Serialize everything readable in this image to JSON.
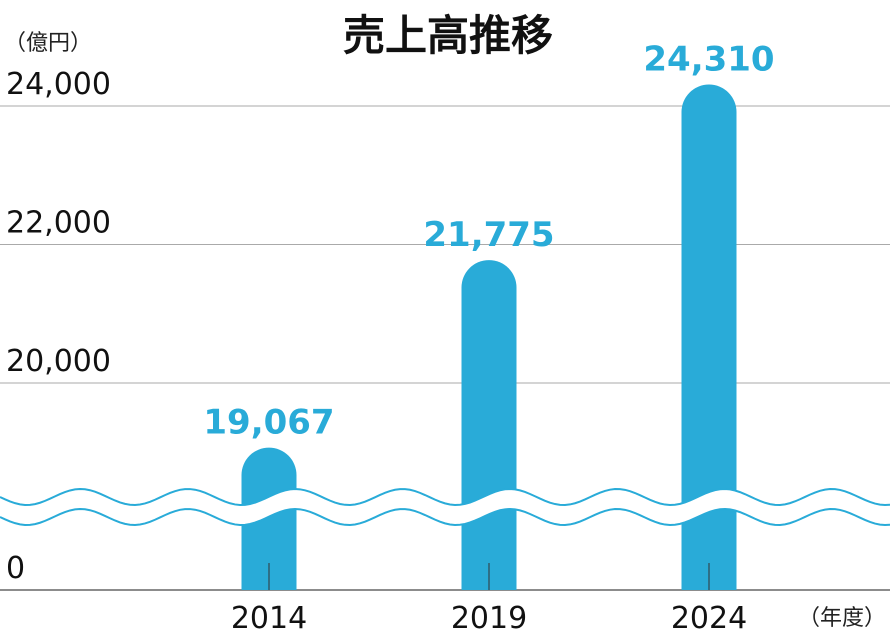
{
  "chart_data": {
    "type": "bar",
    "title": "売上高推移",
    "y_unit_label": "（億円）",
    "x_unit_label": "（年度）",
    "categories": [
      "2014",
      "2019",
      "2024"
    ],
    "values": [
      19067,
      21775,
      24310
    ],
    "value_labels": [
      "19,067",
      "21,775",
      "24,310"
    ],
    "color": "#29abd8",
    "ylim": [
      0,
      24000
    ],
    "yticks": [
      0,
      {
        "value": 20000,
        "label": "20,000"
      },
      {
        "value": 22000,
        "label": "22,000"
      },
      {
        "value": 24000,
        "label": "24,000"
      }
    ],
    "grid": true,
    "broken_axis": true
  }
}
